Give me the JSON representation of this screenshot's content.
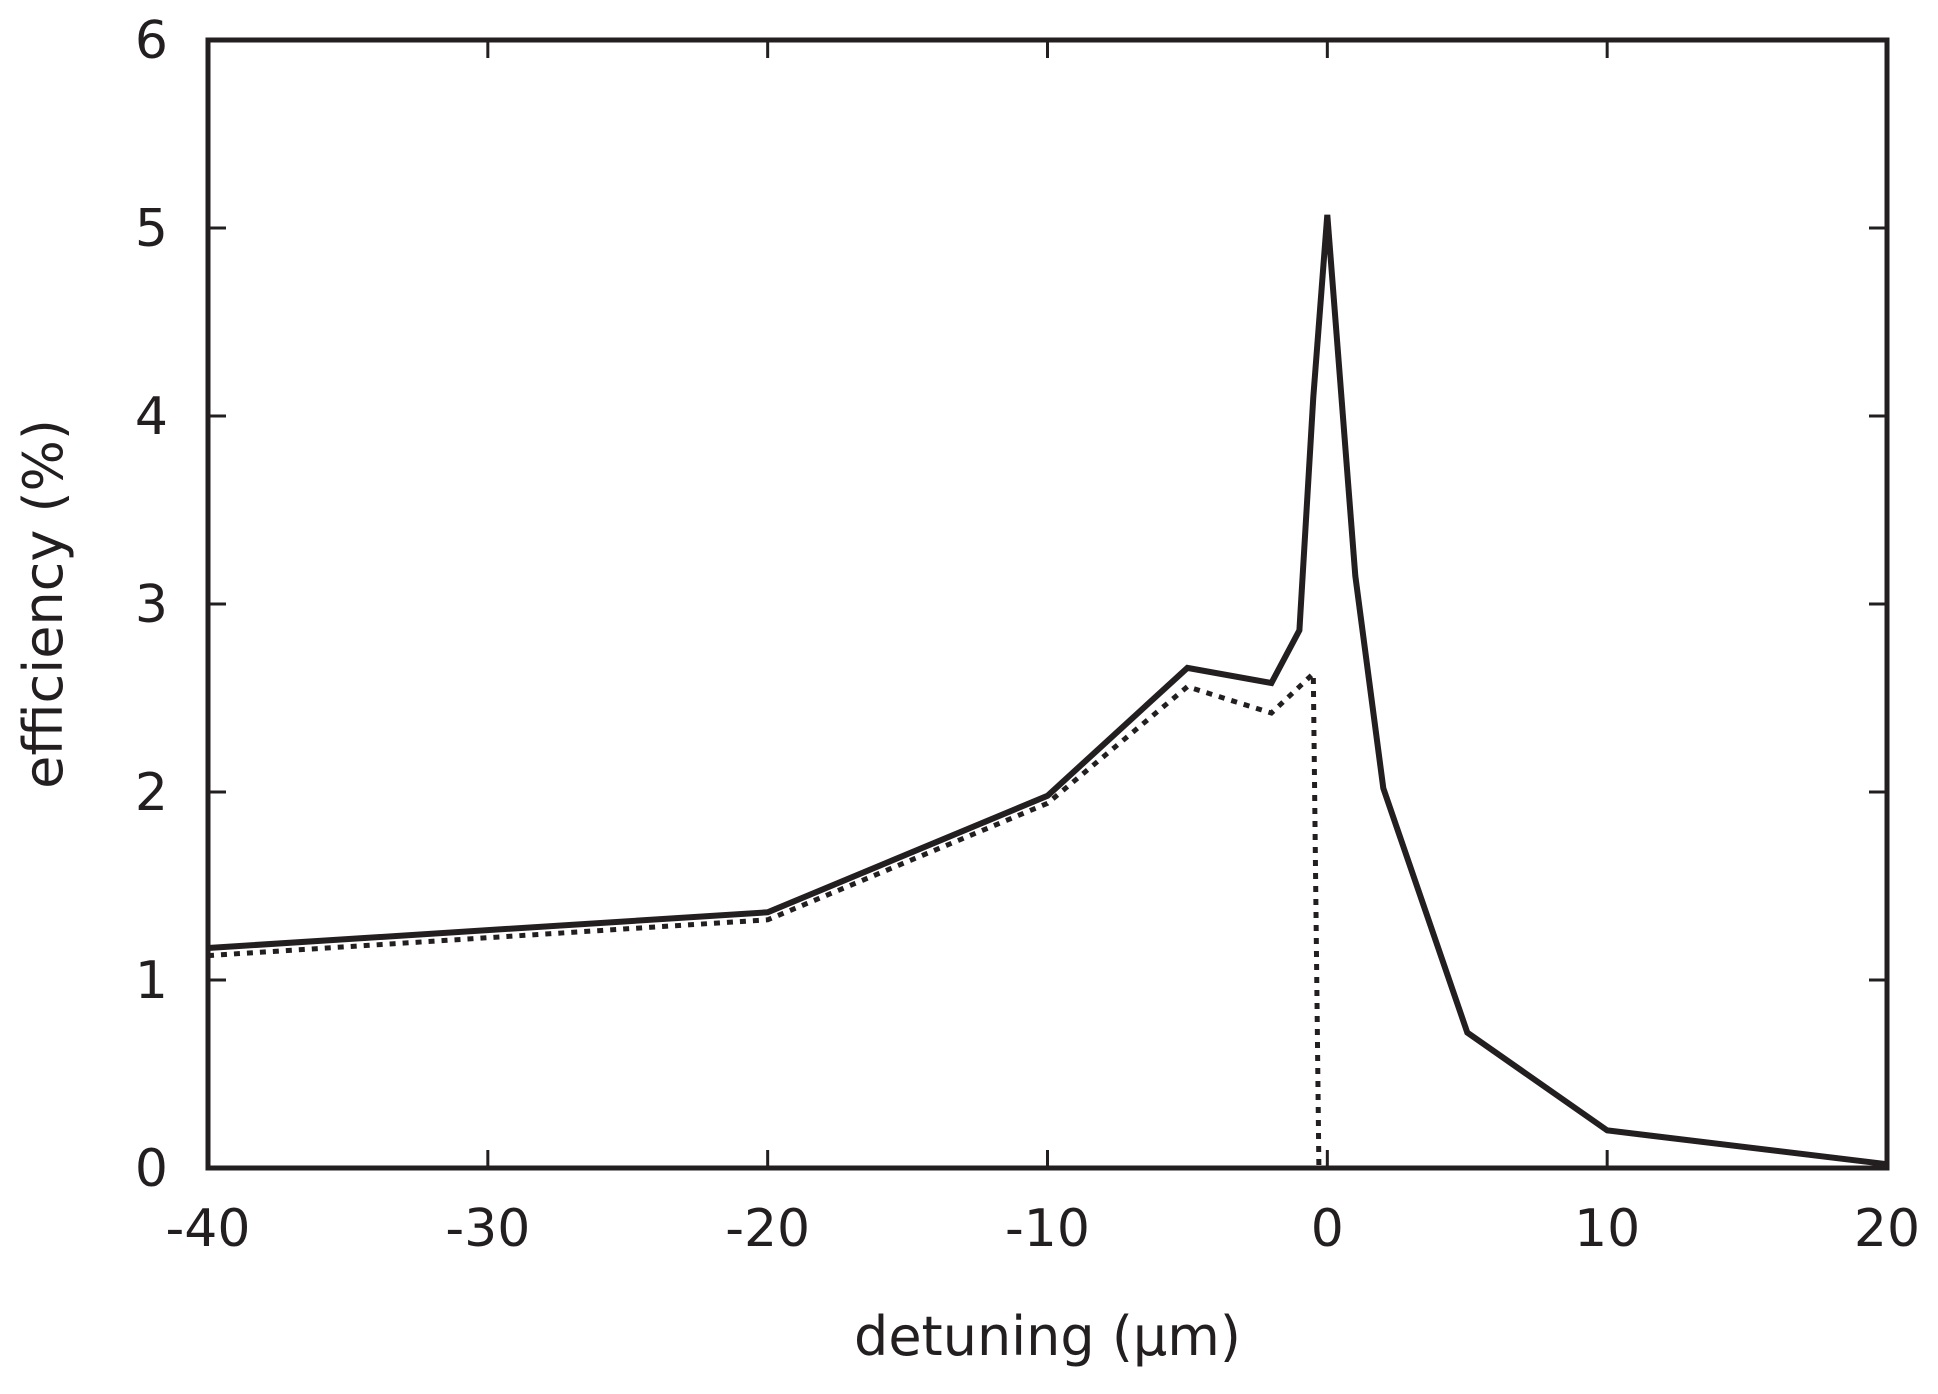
{
  "chart_data": {
    "type": "line",
    "title": "",
    "xlabel": "detuning (μm)",
    "ylabel": "efficiency (%)",
    "xlim": [
      -40,
      20
    ],
    "ylim": [
      0,
      6
    ],
    "x_ticks": [
      -40,
      -30,
      -20,
      -10,
      0,
      10,
      20
    ],
    "y_ticks": [
      0,
      1,
      2,
      3,
      4,
      5,
      6
    ],
    "grid": false,
    "legend": "none",
    "series": [
      {
        "style": "solid",
        "color": "#231f20",
        "x": [
          -40,
          -20,
          -10,
          -5,
          -2,
          -1,
          -0.5,
          0,
          1,
          2,
          5,
          10,
          20
        ],
        "y": [
          1.17,
          1.36,
          1.98,
          2.66,
          2.58,
          2.86,
          4.1,
          5.07,
          3.15,
          2.02,
          0.72,
          0.2,
          0.02
        ]
      },
      {
        "style": "dotted",
        "color": "#231f20",
        "x": [
          -40,
          -20,
          -10,
          -5,
          -2,
          -0.5,
          -0.3
        ],
        "y": [
          1.13,
          1.32,
          1.94,
          2.56,
          2.42,
          2.63,
          0.0
        ]
      }
    ]
  }
}
